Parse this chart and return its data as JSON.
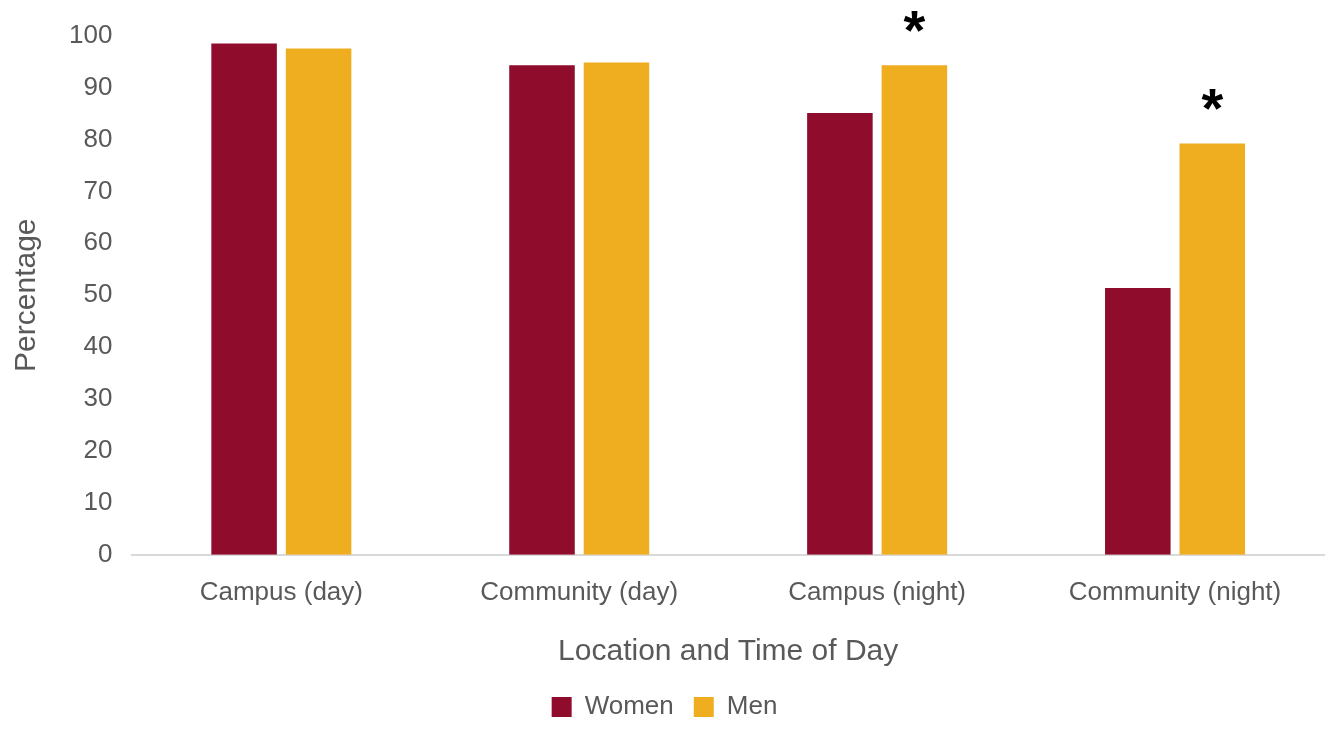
{
  "chart_data": {
    "type": "bar",
    "xlabel": "Location and Time of Day",
    "ylabel": "Percentage",
    "categories": [
      "Campus (day)",
      "Community (day)",
      "Campus (night)",
      "Community (night)"
    ],
    "series": [
      {
        "name": "Women",
        "color": "#8f0c2c",
        "values": [
          98.5,
          94.3,
          85.1,
          51.4
        ]
      },
      {
        "name": "Men",
        "color": "#efad20",
        "values": [
          97.5,
          94.8,
          94.3,
          79.2
        ]
      }
    ],
    "ylim": [
      0,
      100
    ],
    "yticks": [
      0,
      10,
      20,
      30,
      40,
      50,
      60,
      70,
      80,
      90,
      100
    ],
    "grid": false,
    "legend": "bottom",
    "annotations": [
      {
        "text": "*",
        "x": "Campus (night)",
        "y": 94.3
      },
      {
        "text": "*",
        "x": "Community (night)",
        "y": 79.2
      }
    ]
  }
}
